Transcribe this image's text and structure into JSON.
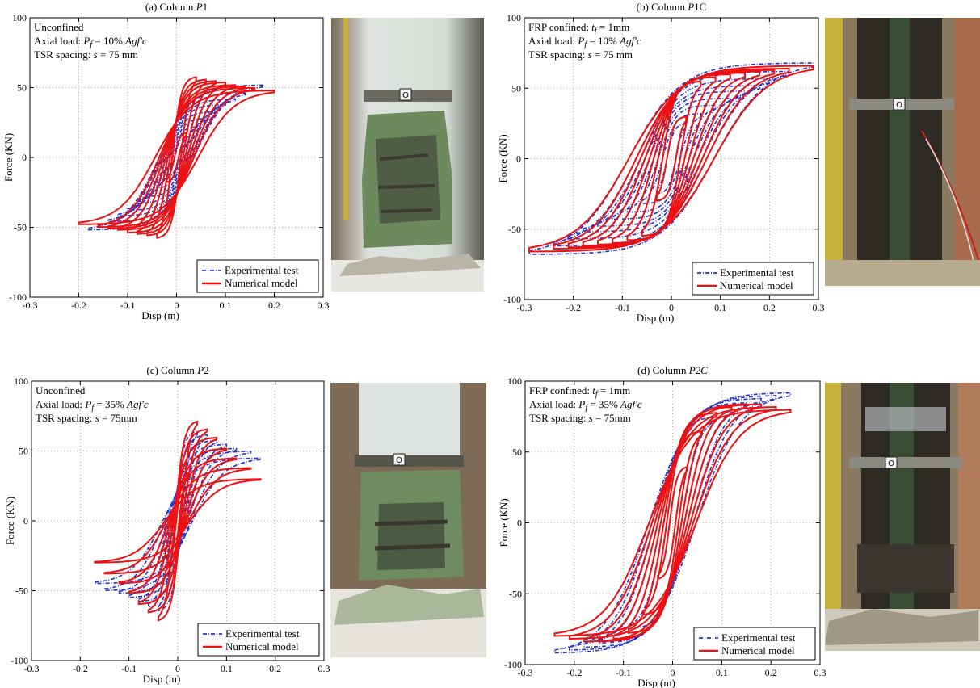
{
  "colors": {
    "experimental": "#2233cc",
    "numerical": "#ee1111",
    "grid": "#999999"
  },
  "legend": {
    "experimental": "Experimental test",
    "numerical": "Numerical model"
  },
  "chart_data": [
    {
      "type": "line",
      "panel": "a",
      "title_prefix": "(a)   Column ",
      "title_italic": "P",
      "title_suffix": "1",
      "xlabel": "Disp (m)",
      "ylabel": "Force (KN)",
      "xlim": [
        -0.3,
        0.3
      ],
      "ylim": [
        -100,
        100
      ],
      "xticks": [
        "-0.3",
        "-0.2",
        "-0.1",
        "0",
        "0.1",
        "0.2",
        "0.3"
      ],
      "yticks": [
        "100",
        "50",
        "0",
        "-50",
        "-100"
      ],
      "grid": true,
      "legend_position": "bottom-right",
      "notes": [
        {
          "segments": [
            {
              "t": "Unconfined",
              "i": false
            }
          ]
        },
        {
          "segments": [
            {
              "t": "Axial load: ",
              "i": false
            },
            {
              "t": "P",
              "i": true
            },
            {
              "t": "f",
              "i": true,
              "sub": true
            },
            {
              "t": " = 10% ",
              "i": false
            },
            {
              "t": "Agf'c",
              "i": true
            }
          ]
        },
        {
          "segments": [
            {
              "t": "TSR spacing: ",
              "i": false
            },
            {
              "t": "s",
              "i": true
            },
            {
              "t": " = 75 mm",
              "i": false
            }
          ]
        }
      ],
      "series": [
        {
          "name": "Experimental test",
          "style": "dashdot",
          "color": "#2233cc",
          "loops": [
            [
              0.02,
              15
            ],
            [
              0.04,
              22
            ],
            [
              0.06,
              28
            ],
            [
              0.08,
              33
            ],
            [
              0.1,
              38
            ],
            [
              0.12,
              42
            ],
            [
              0.14,
              46
            ],
            [
              0.16,
              50
            ],
            [
              0.18,
              52
            ]
          ],
          "pinch": 0.2,
          "yint": 25
        },
        {
          "name": "Numerical model",
          "style": "solid",
          "color": "#ee1111",
          "loops": [
            [
              0.02,
              18
            ],
            [
              0.04,
              58
            ],
            [
              0.06,
              56
            ],
            [
              0.08,
              55
            ],
            [
              0.1,
              54
            ],
            [
              0.12,
              52
            ],
            [
              0.14,
              51
            ],
            [
              0.16,
              50
            ],
            [
              0.2,
              48
            ]
          ],
          "pinch": 0.22,
          "yint": 22
        }
      ]
    },
    {
      "type": "line",
      "panel": "b",
      "title_prefix": "(b)   Column ",
      "title_italic": "P",
      "title_suffix": "1C",
      "xlabel": "Disp (m)",
      "ylabel": "Force (KN)",
      "xlim": [
        -0.3,
        0.3
      ],
      "ylim": [
        -100,
        100
      ],
      "xticks": [
        "-0.3",
        "-0.2",
        "-0.1",
        "0",
        "0.1",
        "0.2",
        "0.3"
      ],
      "yticks": [
        "100",
        "50",
        "0",
        "-50",
        "-100"
      ],
      "grid": true,
      "legend_position": "bottom-right",
      "notes": [
        {
          "segments": [
            {
              "t": "FRP confined: ",
              "i": false
            },
            {
              "t": "t",
              "i": true
            },
            {
              "t": "f",
              "i": true,
              "sub": true
            },
            {
              "t": " = 1mm",
              "i": false
            }
          ]
        },
        {
          "segments": [
            {
              "t": "Axial load: ",
              "i": false
            },
            {
              "t": "P",
              "i": true
            },
            {
              "t": "f",
              "i": true,
              "sub": true
            },
            {
              "t": " = 10% ",
              "i": false
            },
            {
              "t": "Agf'c",
              "i": true
            }
          ]
        },
        {
          "segments": [
            {
              "t": "TSR spacing: ",
              "i": false
            },
            {
              "t": "s",
              "i": true
            },
            {
              "t": " = 75 mm",
              "i": false
            }
          ]
        }
      ],
      "series": [
        {
          "name": "Experimental test",
          "style": "dashdot",
          "color": "#2233cc",
          "loops": [
            [
              0.03,
              25
            ],
            [
              0.06,
              32
            ],
            [
              0.09,
              38
            ],
            [
              0.12,
              43
            ],
            [
              0.15,
              48
            ],
            [
              0.18,
              52
            ],
            [
              0.21,
              57
            ],
            [
              0.24,
              62
            ],
            [
              0.29,
              68
            ]
          ],
          "pinch": 0.3,
          "yint": 28
        },
        {
          "name": "Numerical model",
          "style": "solid",
          "color": "#ee1111",
          "loops": [
            [
              0.03,
              30
            ],
            [
              0.06,
              55
            ],
            [
              0.09,
              58
            ],
            [
              0.12,
              60
            ],
            [
              0.15,
              61
            ],
            [
              0.18,
              62
            ],
            [
              0.21,
              63
            ],
            [
              0.24,
              64
            ],
            [
              0.29,
              66
            ]
          ],
          "pinch": 0.3,
          "yint": 26
        }
      ]
    },
    {
      "type": "line",
      "panel": "c",
      "title_prefix": "(c)   Column ",
      "title_italic": "P",
      "title_suffix": "2",
      "xlabel": "Disp (m)",
      "ylabel": "Force (KN)",
      "xlim": [
        -0.3,
        0.3
      ],
      "ylim": [
        -100,
        100
      ],
      "xticks": [
        "-0.3",
        "-0.2",
        "-0.1",
        "0",
        "0.1",
        "0.2",
        "0.3"
      ],
      "yticks": [
        "100",
        "50",
        "0",
        "-50",
        "-100"
      ],
      "grid": true,
      "legend_position": "bottom-right",
      "notes": [
        {
          "segments": [
            {
              "t": "Unconfined",
              "i": false
            }
          ]
        },
        {
          "segments": [
            {
              "t": "Axial load: ",
              "i": false
            },
            {
              "t": "P",
              "i": true
            },
            {
              "t": "f",
              "i": true,
              "sub": true
            },
            {
              "t": " = 35% ",
              "i": false
            },
            {
              "t": "Agf'c",
              "i": true
            }
          ]
        },
        {
          "segments": [
            {
              "t": "TSR spacing: ",
              "i": false
            },
            {
              "t": "s",
              "i": true
            },
            {
              "t": " = 75mm",
              "i": false
            }
          ]
        }
      ],
      "series": [
        {
          "name": "Experimental test",
          "style": "dashdot",
          "color": "#2233cc",
          "loops": [
            [
              0.02,
              30
            ],
            [
              0.04,
              65
            ],
            [
              0.06,
              62
            ],
            [
              0.08,
              58
            ],
            [
              0.1,
              55
            ],
            [
              0.12,
              52
            ],
            [
              0.15,
              50
            ],
            [
              0.17,
              45
            ]
          ],
          "pinch": 0.18,
          "yint": 15
        },
        {
          "name": "Numerical model",
          "style": "solid",
          "color": "#ee1111",
          "loops": [
            [
              0.02,
              35
            ],
            [
              0.04,
              72
            ],
            [
              0.06,
              66
            ],
            [
              0.08,
              60
            ],
            [
              0.1,
              52
            ],
            [
              0.12,
              45
            ],
            [
              0.15,
              38
            ],
            [
              0.17,
              30
            ]
          ],
          "pinch": 0.15,
          "yint": 12
        }
      ]
    },
    {
      "type": "line",
      "panel": "d",
      "title_prefix": "(d)   Column ",
      "title_italic": "P2C",
      "title_suffix": "",
      "xlabel": "Disp (m)",
      "ylabel": "Force (KN)",
      "xlim": [
        -0.3,
        0.3
      ],
      "ylim": [
        -100,
        100
      ],
      "xticks": [
        "-0.3",
        "-0.2",
        "-0.1",
        "0",
        "0.1",
        "0.2",
        "0.3"
      ],
      "yticks": [
        "100",
        "50",
        "0",
        "-50",
        "-100"
      ],
      "grid": true,
      "legend_position": "bottom-right",
      "notes": [
        {
          "segments": [
            {
              "t": "FRP confined: ",
              "i": false
            },
            {
              "t": "t",
              "i": true
            },
            {
              "t": "f",
              "i": true,
              "sub": true
            },
            {
              "t": " = 1mm",
              "i": false
            }
          ]
        },
        {
          "segments": [
            {
              "t": "Axial load: ",
              "i": false
            },
            {
              "t": "P",
              "i": true
            },
            {
              "t": "f",
              "i": true,
              "sub": true
            },
            {
              "t": " = 35% ",
              "i": false
            },
            {
              "t": "Agf'c",
              "i": true
            }
          ]
        },
        {
          "segments": [
            {
              "t": "TSR spacing: ",
              "i": false
            },
            {
              "t": "s",
              "i": true
            },
            {
              "t": " = 75mm",
              "i": false
            }
          ]
        }
      ],
      "series": [
        {
          "name": "Experimental test",
          "style": "dashdot",
          "color": "#2233cc",
          "loops": [
            [
              0.03,
              40
            ],
            [
              0.06,
              65
            ],
            [
              0.09,
              75
            ],
            [
              0.12,
              82
            ],
            [
              0.15,
              85
            ],
            [
              0.18,
              88
            ],
            [
              0.21,
              90
            ],
            [
              0.24,
              92
            ]
          ],
          "pinch": 0.2,
          "yint": 22
        },
        {
          "name": "Numerical model",
          "style": "solid",
          "color": "#ee1111",
          "loops": [
            [
              0.03,
              40
            ],
            [
              0.06,
              65
            ],
            [
              0.09,
              78
            ],
            [
              0.12,
              82
            ],
            [
              0.15,
              84
            ],
            [
              0.18,
              84
            ],
            [
              0.21,
              82
            ],
            [
              0.24,
              80
            ]
          ],
          "pinch": 0.2,
          "yint": 20
        }
      ]
    }
  ]
}
